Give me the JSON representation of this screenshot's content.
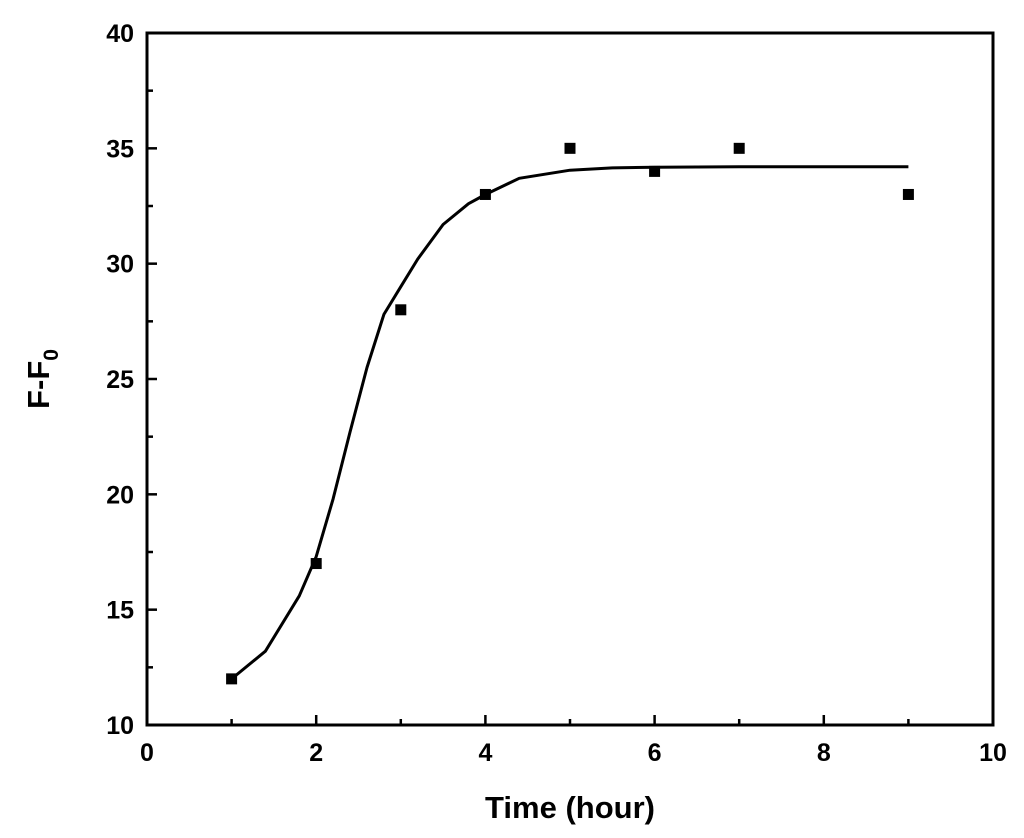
{
  "chart_data": {
    "type": "scatter",
    "xlabel": "Time (hour)",
    "ylabel": {
      "main": "F-F",
      "subscript": "0"
    },
    "xlim": [
      0,
      10
    ],
    "ylim": [
      10,
      40
    ],
    "x_ticks": [
      "0",
      "2",
      "4",
      "6",
      "8",
      "10"
    ],
    "y_ticks": [
      "10",
      "15",
      "20",
      "25",
      "30",
      "35",
      "40"
    ],
    "grid": false,
    "legend": "none",
    "series": [
      {
        "kind": "points",
        "marker": "square",
        "x": [
          1,
          2,
          3,
          4,
          5,
          6,
          7,
          9
        ],
        "y": [
          12,
          17,
          28,
          33,
          35,
          34,
          35,
          33
        ]
      },
      {
        "kind": "fit-line",
        "x": [
          1,
          1.4,
          1.8,
          2,
          2.2,
          2.4,
          2.6,
          2.8,
          3,
          3.2,
          3.5,
          3.8,
          4,
          4.4,
          5,
          5.5,
          6,
          7,
          8,
          9
        ],
        "y": [
          12,
          13.2,
          15.6,
          17.3,
          19.8,
          22.7,
          25.5,
          27.8,
          29,
          30.2,
          31.7,
          32.6,
          33,
          33.7,
          34.05,
          34.15,
          34.18,
          34.2,
          34.2,
          34.2
        ]
      }
    ],
    "colors": {
      "axis": "#000000",
      "marker": "#000000",
      "line": "#000000"
    }
  }
}
